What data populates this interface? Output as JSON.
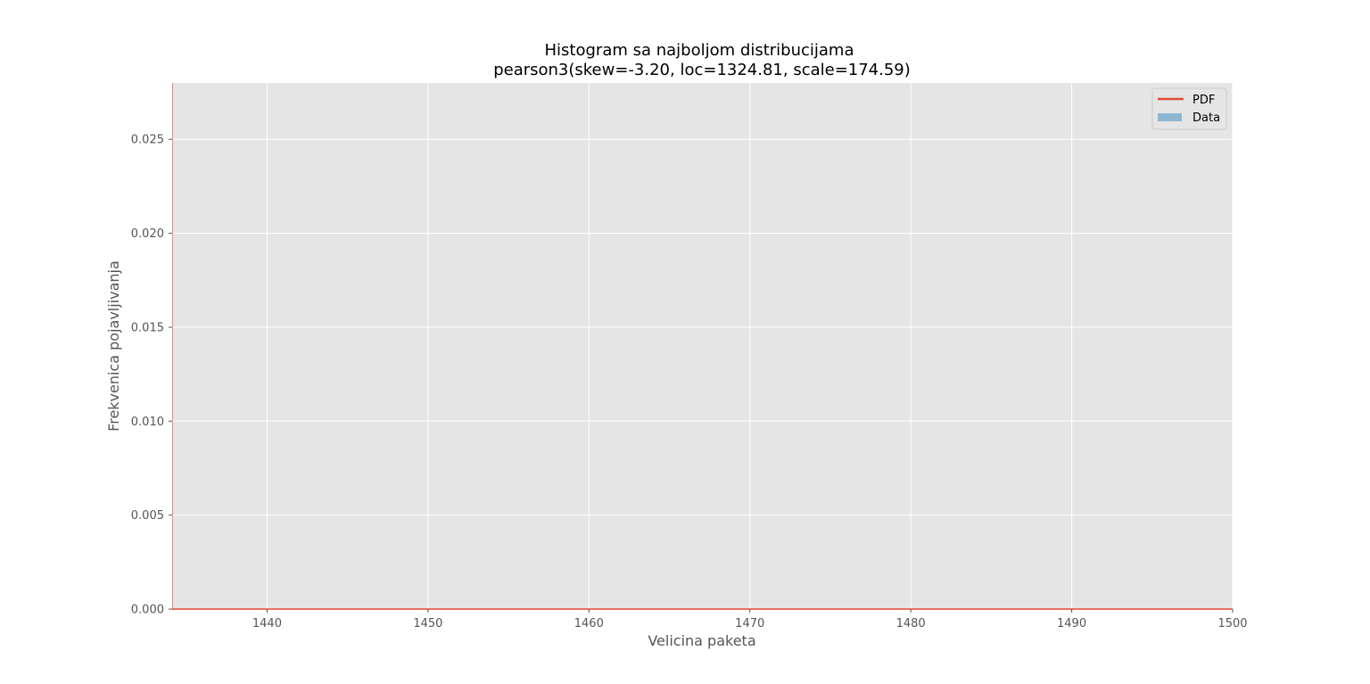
{
  "chart_data": {
    "type": "line",
    "title": "Histogram sa najboljom distribucijama",
    "subtitle": "pearson3(skew=-3.20, loc=1324.81, scale=174.59)",
    "xlabel": "Velicina paketa",
    "ylabel": "Frekvenica pojavljivanja",
    "xlim": [
      1434.1,
      1500
    ],
    "ylim": [
      0,
      0.028
    ],
    "x_ticks": [
      1440,
      1450,
      1460,
      1470,
      1480,
      1490,
      1500
    ],
    "x_tick_labels": [
      "1440",
      "1450",
      "1460",
      "1470",
      "1480",
      "1490",
      "1500"
    ],
    "y_ticks": [
      0.0,
      0.005,
      0.01,
      0.015,
      0.02,
      0.025
    ],
    "y_tick_labels": [
      "0.000",
      "0.005",
      "0.010",
      "0.015",
      "0.020",
      "0.025"
    ],
    "grid": true,
    "legend_position": "top-right",
    "series": [
      {
        "name": "PDF",
        "kind": "line",
        "color": "#E24A33",
        "x": [
          1434.1,
          1440,
          1450,
          1460,
          1470,
          1480,
          1490,
          1500
        ],
        "y": [
          0,
          0,
          0,
          0,
          0,
          0,
          0,
          0
        ]
      },
      {
        "name": "Data",
        "kind": "histogram",
        "color": "#348ABD",
        "x": [],
        "y": []
      }
    ],
    "colors": {
      "plot_background": "#E5E5E5",
      "grid": "#FFFFFF"
    }
  }
}
